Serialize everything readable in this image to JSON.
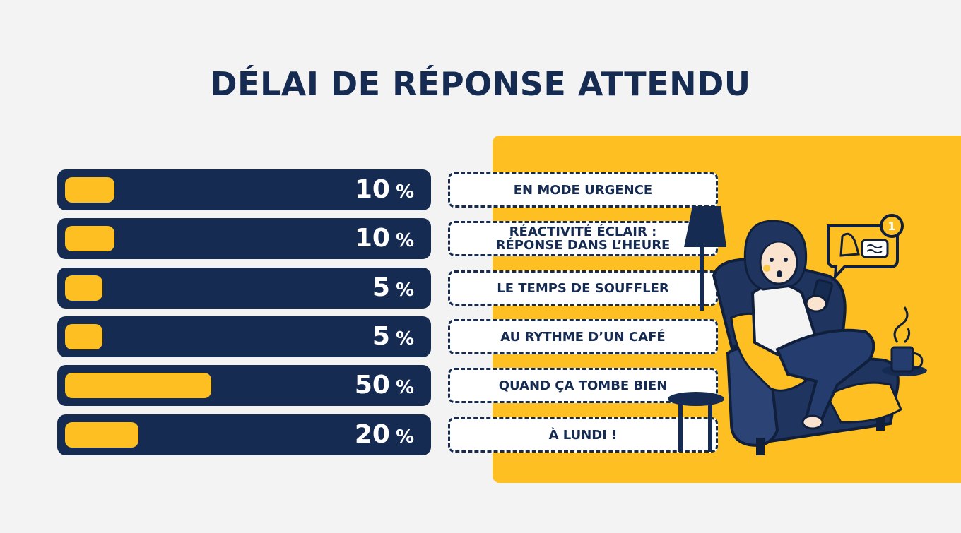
{
  "title": "DÉLAI DE RÉPONSE ATTENDU",
  "colors": {
    "navy": "#162b52",
    "yellow": "#fdbf22",
    "background": "#f3f3f4",
    "label_bg": "#ffffff"
  },
  "illustration": "woman-on-armchair-with-phone-illustration",
  "chart_data": {
    "type": "bar",
    "orientation": "horizontal",
    "categories": [
      "EN MODE URGENCE",
      "RÉACTIVITÉ ÉCLAIR : RÉPONSE DANS L’HEURE",
      "LE TEMPS DE SOUFFLER",
      "AU RYTHME D’UN CAFÉ",
      "QUAND ÇA TOMBE BIEN",
      "À LUNDI !"
    ],
    "values": [
      10,
      10,
      5,
      5,
      50,
      20
    ],
    "value_labels": [
      "10",
      "10",
      "5",
      "5",
      "50",
      "20"
    ],
    "unit": "%",
    "xlim": [
      0,
      100
    ],
    "title": "DÉLAI DE RÉPONSE ATTENDU",
    "grid": false,
    "legend": "none"
  }
}
